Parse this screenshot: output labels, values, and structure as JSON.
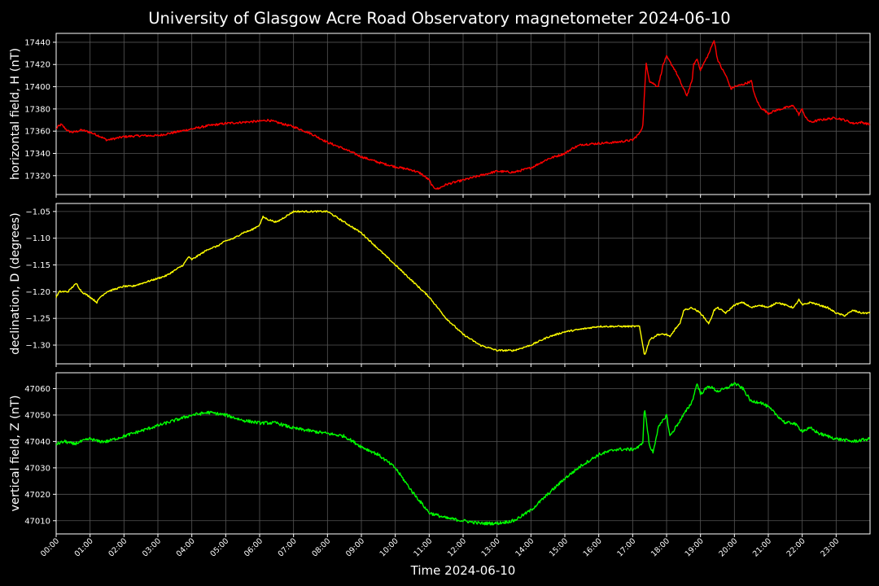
{
  "chart_data": {
    "type": "line",
    "title": "University of Glasgow Acre Road Observatory magnetometer 2024-06-10",
    "xlabel": "Time 2024-06-10",
    "x_unit": "hours",
    "xlim": [
      0,
      24
    ],
    "x_tick_labels": [
      "00:00",
      "01:00",
      "02:00",
      "03:00",
      "04:00",
      "05:00",
      "06:00",
      "07:00",
      "08:00",
      "09:00",
      "10:00",
      "11:00",
      "12:00",
      "13:00",
      "14:00",
      "15:00",
      "16:00",
      "17:00",
      "18:00",
      "19:00",
      "20:00",
      "21:00",
      "22:00",
      "23:00"
    ],
    "background": "#000000",
    "grid": true,
    "grid_color": "#555555",
    "panels": [
      {
        "ylabel": "horizontal field, H (nT)",
        "color": "#ff0000",
        "ylim": [
          17303,
          17448
        ],
        "y_ticks": [
          17320,
          17340,
          17360,
          17380,
          17400,
          17420,
          17440
        ],
        "y_tick_labels": [
          "17320",
          "17340",
          "17360",
          "17380",
          "17400",
          "17420",
          "17440"
        ],
        "noise": 1.0,
        "x": [
          0,
          0.05,
          0.15,
          0.25,
          0.35,
          0.5,
          0.75,
          1.0,
          1.25,
          1.5,
          2.0,
          2.5,
          3.0,
          3.5,
          4.0,
          4.5,
          5.0,
          5.5,
          6.0,
          6.25,
          6.5,
          7.0,
          7.5,
          8.0,
          8.5,
          9.0,
          9.5,
          10.0,
          10.5,
          10.75,
          11.0,
          11.1,
          11.25,
          11.5,
          12.0,
          12.5,
          13.0,
          13.5,
          14.0,
          14.5,
          15.0,
          15.25,
          15.5,
          16.0,
          16.5,
          17.0,
          17.2,
          17.3,
          17.35,
          17.4,
          17.5,
          17.75,
          17.9,
          18.0,
          18.25,
          18.5,
          18.6,
          18.75,
          18.8,
          18.9,
          19.0,
          19.25,
          19.4,
          19.5,
          19.6,
          19.75,
          19.9,
          20.0,
          20.25,
          20.5,
          20.6,
          20.75,
          21.0,
          21.25,
          21.5,
          21.75,
          21.9,
          22.0,
          22.1,
          22.25,
          22.5,
          23.0,
          23.25,
          23.5,
          23.75,
          24.0
        ],
        "values": [
          17362,
          17364,
          17366,
          17363,
          17360,
          17359,
          17361,
          17359,
          17356,
          17352,
          17355,
          17356,
          17356,
          17359,
          17362,
          17365,
          17367,
          17368,
          17369,
          17370,
          17368,
          17364,
          17358,
          17350,
          17344,
          17337,
          17332,
          17328,
          17325,
          17322,
          17316,
          17310,
          17308,
          17312,
          17316,
          17320,
          17324,
          17323,
          17327,
          17335,
          17340,
          17345,
          17348,
          17349,
          17350,
          17352,
          17358,
          17365,
          17395,
          17421,
          17405,
          17400,
          17420,
          17427,
          17415,
          17398,
          17392,
          17405,
          17420,
          17425,
          17415,
          17430,
          17442,
          17425,
          17418,
          17410,
          17398,
          17400,
          17402,
          17405,
          17392,
          17382,
          17376,
          17379,
          17381,
          17383,
          17375,
          17380,
          17372,
          17368,
          17370,
          17372,
          17370,
          17367,
          17368,
          17366
        ]
      },
      {
        "ylabel": "declination, D (degrees)",
        "color": "#ffff00",
        "ylim": [
          -1.335,
          -1.035
        ],
        "y_ticks": [
          -1.3,
          -1.25,
          -1.2,
          -1.15,
          -1.1,
          -1.05
        ],
        "y_tick_labels": [
          "−1.30",
          "−1.25",
          "−1.20",
          "−1.15",
          "−1.10",
          "−1.05"
        ],
        "noise": 0.0015,
        "x": [
          0,
          0.1,
          0.25,
          0.35,
          0.5,
          0.6,
          0.75,
          1.0,
          1.2,
          1.3,
          1.5,
          1.75,
          2.0,
          2.25,
          2.5,
          2.75,
          3.0,
          3.25,
          3.5,
          3.75,
          3.9,
          4.0,
          4.25,
          4.5,
          4.75,
          5.0,
          5.25,
          5.5,
          5.75,
          6.0,
          6.1,
          6.25,
          6.5,
          6.75,
          7.0,
          7.25,
          7.5,
          7.75,
          8.0,
          8.25,
          8.5,
          8.75,
          9.0,
          9.5,
          10.0,
          10.5,
          11.0,
          11.5,
          12.0,
          12.5,
          13.0,
          13.5,
          14.0,
          14.5,
          15.0,
          15.5,
          16.0,
          16.5,
          17.0,
          17.2,
          17.3,
          17.35,
          17.5,
          17.75,
          18.0,
          18.1,
          18.25,
          18.4,
          18.5,
          18.75,
          19.0,
          19.25,
          19.4,
          19.5,
          19.75,
          20.0,
          20.25,
          20.5,
          20.75,
          21.0,
          21.25,
          21.5,
          21.75,
          21.9,
          22.0,
          22.25,
          22.5,
          22.75,
          23.0,
          23.25,
          23.5,
          23.75,
          24.0
        ],
        "values": [
          -1.21,
          -1.2,
          -1.2,
          -1.2,
          -1.19,
          -1.185,
          -1.2,
          -1.21,
          -1.22,
          -1.21,
          -1.2,
          -1.195,
          -1.19,
          -1.19,
          -1.185,
          -1.18,
          -1.175,
          -1.17,
          -1.16,
          -1.15,
          -1.135,
          -1.14,
          -1.13,
          -1.12,
          -1.115,
          -1.105,
          -1.1,
          -1.09,
          -1.085,
          -1.075,
          -1.06,
          -1.065,
          -1.07,
          -1.06,
          -1.05,
          -1.05,
          -1.05,
          -1.05,
          -1.05,
          -1.06,
          -1.07,
          -1.08,
          -1.09,
          -1.12,
          -1.15,
          -1.18,
          -1.21,
          -1.25,
          -1.28,
          -1.3,
          -1.31,
          -1.31,
          -1.3,
          -1.285,
          -1.275,
          -1.27,
          -1.265,
          -1.265,
          -1.265,
          -1.265,
          -1.3,
          -1.32,
          -1.29,
          -1.28,
          -1.28,
          -1.285,
          -1.27,
          -1.26,
          -1.235,
          -1.23,
          -1.24,
          -1.26,
          -1.235,
          -1.23,
          -1.24,
          -1.225,
          -1.22,
          -1.23,
          -1.225,
          -1.23,
          -1.22,
          -1.225,
          -1.23,
          -1.215,
          -1.225,
          -1.22,
          -1.225,
          -1.23,
          -1.24,
          -1.245,
          -1.235,
          -1.24,
          -1.24
        ]
      },
      {
        "ylabel": "vertical field, Z (nT)",
        "color": "#00ff00",
        "ylim": [
          47005,
          47066
        ],
        "y_ticks": [
          47010,
          47020,
          47030,
          47040,
          47050,
          47060
        ],
        "y_tick_labels": [
          "47010",
          "47020",
          "47030",
          "47040",
          "47050",
          "47060"
        ],
        "noise": 0.6,
        "x": [
          0,
          0.25,
          0.5,
          0.75,
          1.0,
          1.25,
          1.5,
          2.0,
          2.5,
          3.0,
          3.5,
          4.0,
          4.5,
          5.0,
          5.5,
          6.0,
          6.5,
          7.0,
          7.5,
          8.0,
          8.5,
          9.0,
          9.5,
          10.0,
          10.5,
          11.0,
          11.5,
          12.0,
          12.5,
          13.0,
          13.5,
          14.0,
          14.5,
          15.0,
          15.5,
          16.0,
          16.5,
          17.0,
          17.2,
          17.3,
          17.35,
          17.5,
          17.6,
          17.75,
          18.0,
          18.1,
          18.25,
          18.5,
          18.75,
          18.9,
          19.0,
          19.25,
          19.5,
          19.75,
          20.0,
          20.25,
          20.5,
          20.75,
          21.0,
          21.5,
          21.75,
          22.0,
          22.25,
          22.5,
          23.0,
          23.5,
          24.0
        ],
        "values": [
          47039,
          47040,
          47039,
          47040,
          47041,
          47040,
          47040,
          47042,
          47044,
          47046,
          47048,
          47050,
          47051,
          47050,
          47048,
          47047,
          47047,
          47045,
          47044,
          47043,
          47042,
          47038,
          47035,
          47030,
          47021,
          47013,
          47011,
          47010,
          47009,
          47009,
          47010,
          47014,
          47020,
          47026,
          47031,
          47035,
          47037,
          47037,
          47038,
          47040,
          47053,
          47038,
          47036,
          47045,
          47050,
          47042,
          47045,
          47050,
          47055,
          47062,
          47058,
          47061,
          47059,
          47060,
          47062,
          47060,
          47055,
          47055,
          47053,
          47047,
          47047,
          47044,
          47045,
          47043,
          47041,
          47040,
          47041
        ]
      }
    ]
  }
}
